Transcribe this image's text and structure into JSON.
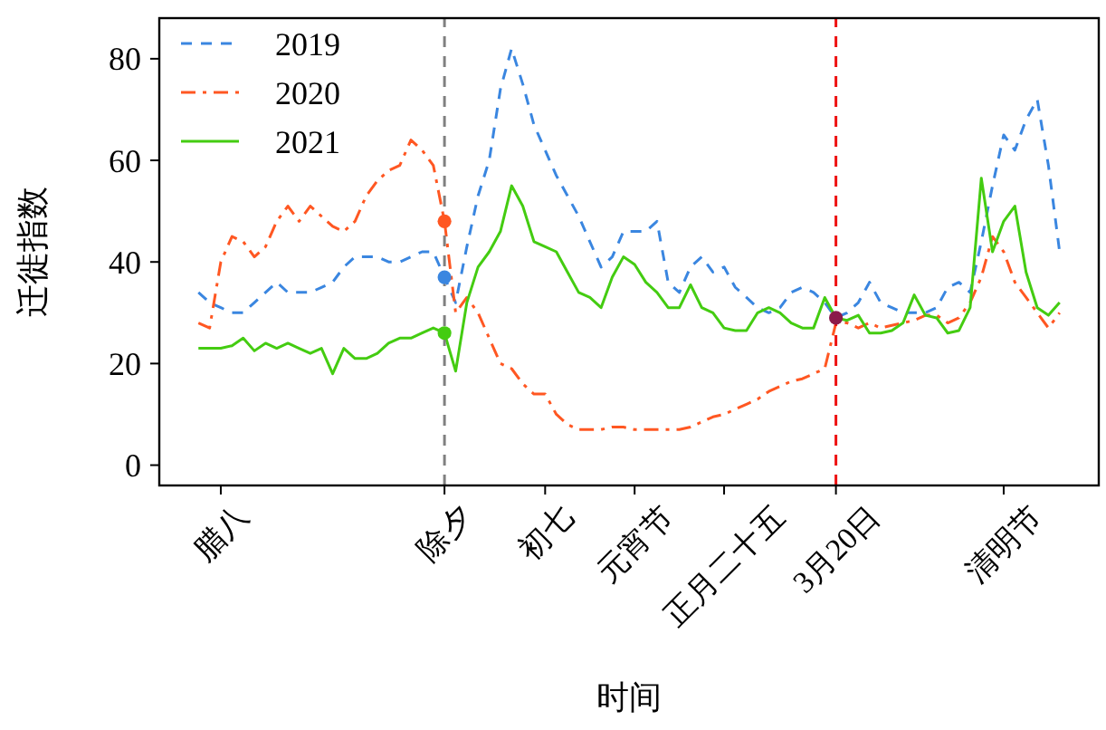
{
  "chart_data": {
    "type": "line",
    "xlabel": "时间",
    "ylabel": "迁徙指数",
    "categories": [
      null,
      null,
      "腊八",
      null,
      null,
      null,
      null,
      null,
      null,
      null,
      null,
      null,
      null,
      null,
      null,
      null,
      null,
      null,
      null,
      null,
      null,
      null,
      "除夕",
      null,
      null,
      null,
      null,
      null,
      null,
      null,
      null,
      "初七",
      null,
      null,
      null,
      null,
      null,
      null,
      null,
      "元宵节",
      null,
      null,
      null,
      null,
      null,
      null,
      null,
      "正月二十五",
      null,
      null,
      null,
      null,
      null,
      null,
      null,
      null,
      null,
      "3月20日",
      null,
      null,
      null,
      null,
      null,
      null,
      null,
      null,
      null,
      null,
      null,
      null,
      null,
      null,
      "清明节",
      null,
      null,
      null,
      null,
      null
    ],
    "ylim": [
      -4,
      88
    ],
    "yticks": [
      0,
      20,
      40,
      60,
      80
    ],
    "grid": false,
    "legend": "top left",
    "ref_lines": [
      {
        "axis": "x",
        "value": "除夕",
        "color": "#808080",
        "line_style": "dashed"
      },
      {
        "axis": "x",
        "value": "3月20日",
        "color": "#ee1111",
        "line_style": "dashed"
      }
    ],
    "series": [
      {
        "name": "2019",
        "color": "#3a86e0",
        "line_style": "dashed",
        "values": [
          34,
          32,
          31,
          30,
          30,
          32,
          34,
          36,
          34,
          34,
          34,
          35,
          36,
          39,
          41,
          41,
          41,
          40,
          40,
          41,
          42,
          42,
          37,
          32,
          43,
          53,
          60,
          74,
          82,
          75,
          67,
          62,
          57,
          53,
          49,
          44,
          39,
          41,
          46,
          46,
          46,
          48,
          36,
          34,
          39,
          41,
          38,
          39,
          35,
          33,
          31,
          30,
          31,
          34,
          35,
          34,
          32,
          29,
          30,
          32,
          36,
          32,
          31,
          30,
          30,
          30,
          31,
          35,
          36,
          34,
          44,
          55,
          65,
          62,
          68,
          72,
          59,
          42
        ]
      },
      {
        "name": "2020",
        "color": "#ff5722",
        "line_style": "dashdot",
        "values": [
          28,
          27,
          40,
          45,
          44,
          41,
          43,
          48,
          51,
          48,
          51,
          49,
          47,
          46,
          48,
          53,
          56,
          58,
          59,
          64,
          62,
          59,
          48,
          30,
          33,
          30,
          25,
          20,
          19,
          16,
          14,
          14,
          10,
          8,
          7,
          7,
          7,
          7.5,
          7.5,
          7,
          7,
          7,
          7,
          7,
          7.5,
          8.5,
          9.5,
          10,
          11,
          12,
          13,
          14.5,
          15.5,
          16.5,
          17,
          18,
          19,
          28,
          28,
          27,
          28,
          27,
          27.5,
          28,
          28.5,
          29.5,
          29.5,
          28,
          29,
          32,
          37,
          45,
          42,
          36,
          33,
          30,
          27,
          30
        ]
      },
      {
        "name": "2021",
        "color": "#44cc11",
        "line_style": "solid",
        "values": [
          23,
          23,
          23,
          23.5,
          25,
          22.5,
          24,
          23,
          24,
          23,
          22,
          23,
          18,
          23,
          21,
          21,
          22,
          24,
          25,
          25,
          26,
          27,
          26,
          18.5,
          32,
          39,
          42,
          46,
          55,
          51,
          44,
          43,
          42,
          38,
          34,
          33,
          31,
          37,
          41,
          39.5,
          36,
          34,
          31,
          31,
          35.5,
          31,
          30,
          27,
          26.5,
          26.5,
          30,
          31,
          30,
          28,
          27,
          27,
          33,
          29,
          28.5,
          29.5,
          26,
          26,
          26.5,
          28,
          33.5,
          29.5,
          29,
          26,
          26.5,
          31,
          56.5,
          42,
          48,
          51,
          38,
          31,
          29.5,
          32
        ]
      },
      {
        "type": "scatter",
        "marker": "circle",
        "x": [
          "除夕",
          "除夕",
          "除夕",
          "3月20日"
        ],
        "values": [
          37,
          48,
          26,
          29
        ],
        "colors": [
          "#3a86e0",
          "#ff5722",
          "#44cc11",
          "#8b1a4a"
        ]
      }
    ]
  }
}
